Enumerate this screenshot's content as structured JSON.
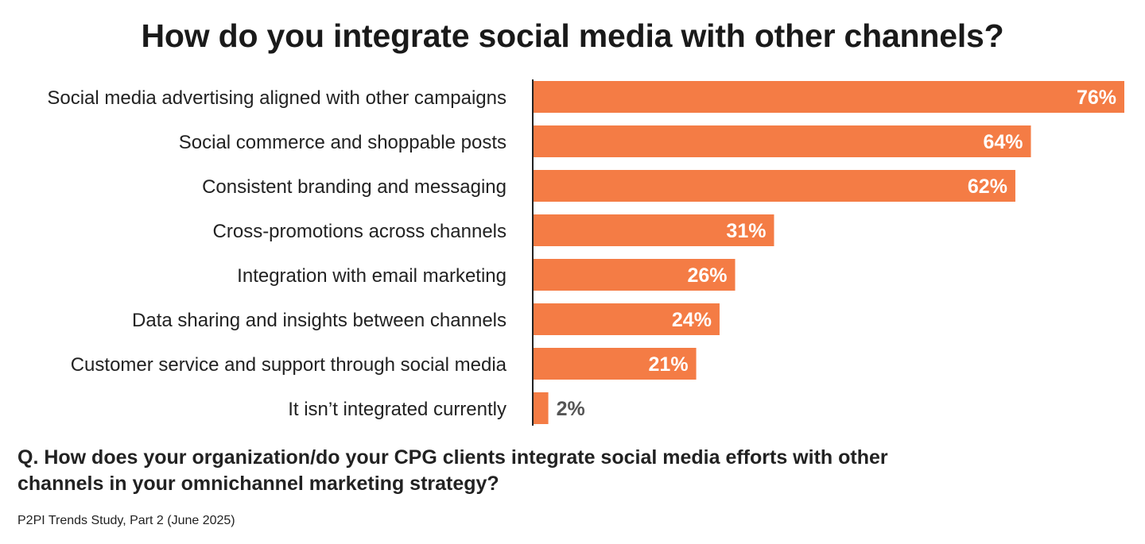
{
  "title": "How do you integrate social media with other channels?",
  "question": "Q. How does your organization/do your CPG clients integrate social media efforts with other channels in your omnichannel marketing strategy?",
  "source": "P2PI Trends Study, Part 2 (June 2025)",
  "colors": {
    "bar": "#f47c45",
    "bar_label_inside": "#ffffff",
    "bar_label_outside": "#555555",
    "axis": "#222222",
    "text": "#222222"
  },
  "chart_data": {
    "type": "bar",
    "orientation": "horizontal",
    "categories": [
      "Social media advertising aligned with other campaigns",
      "Social commerce and shoppable posts",
      "Consistent branding and messaging",
      "Cross-promotions across channels",
      "Integration with email marketing",
      "Data sharing and insights between channels",
      "Customer service and support through social media",
      "It isn’t integrated currently"
    ],
    "values": [
      76,
      64,
      62,
      31,
      26,
      24,
      21,
      2
    ],
    "data_labels": [
      "76%",
      "64%",
      "62%",
      "31%",
      "26%",
      "24%",
      "21%",
      "2%"
    ],
    "xlim": [
      0,
      76
    ],
    "grid": false,
    "legend": "none"
  }
}
